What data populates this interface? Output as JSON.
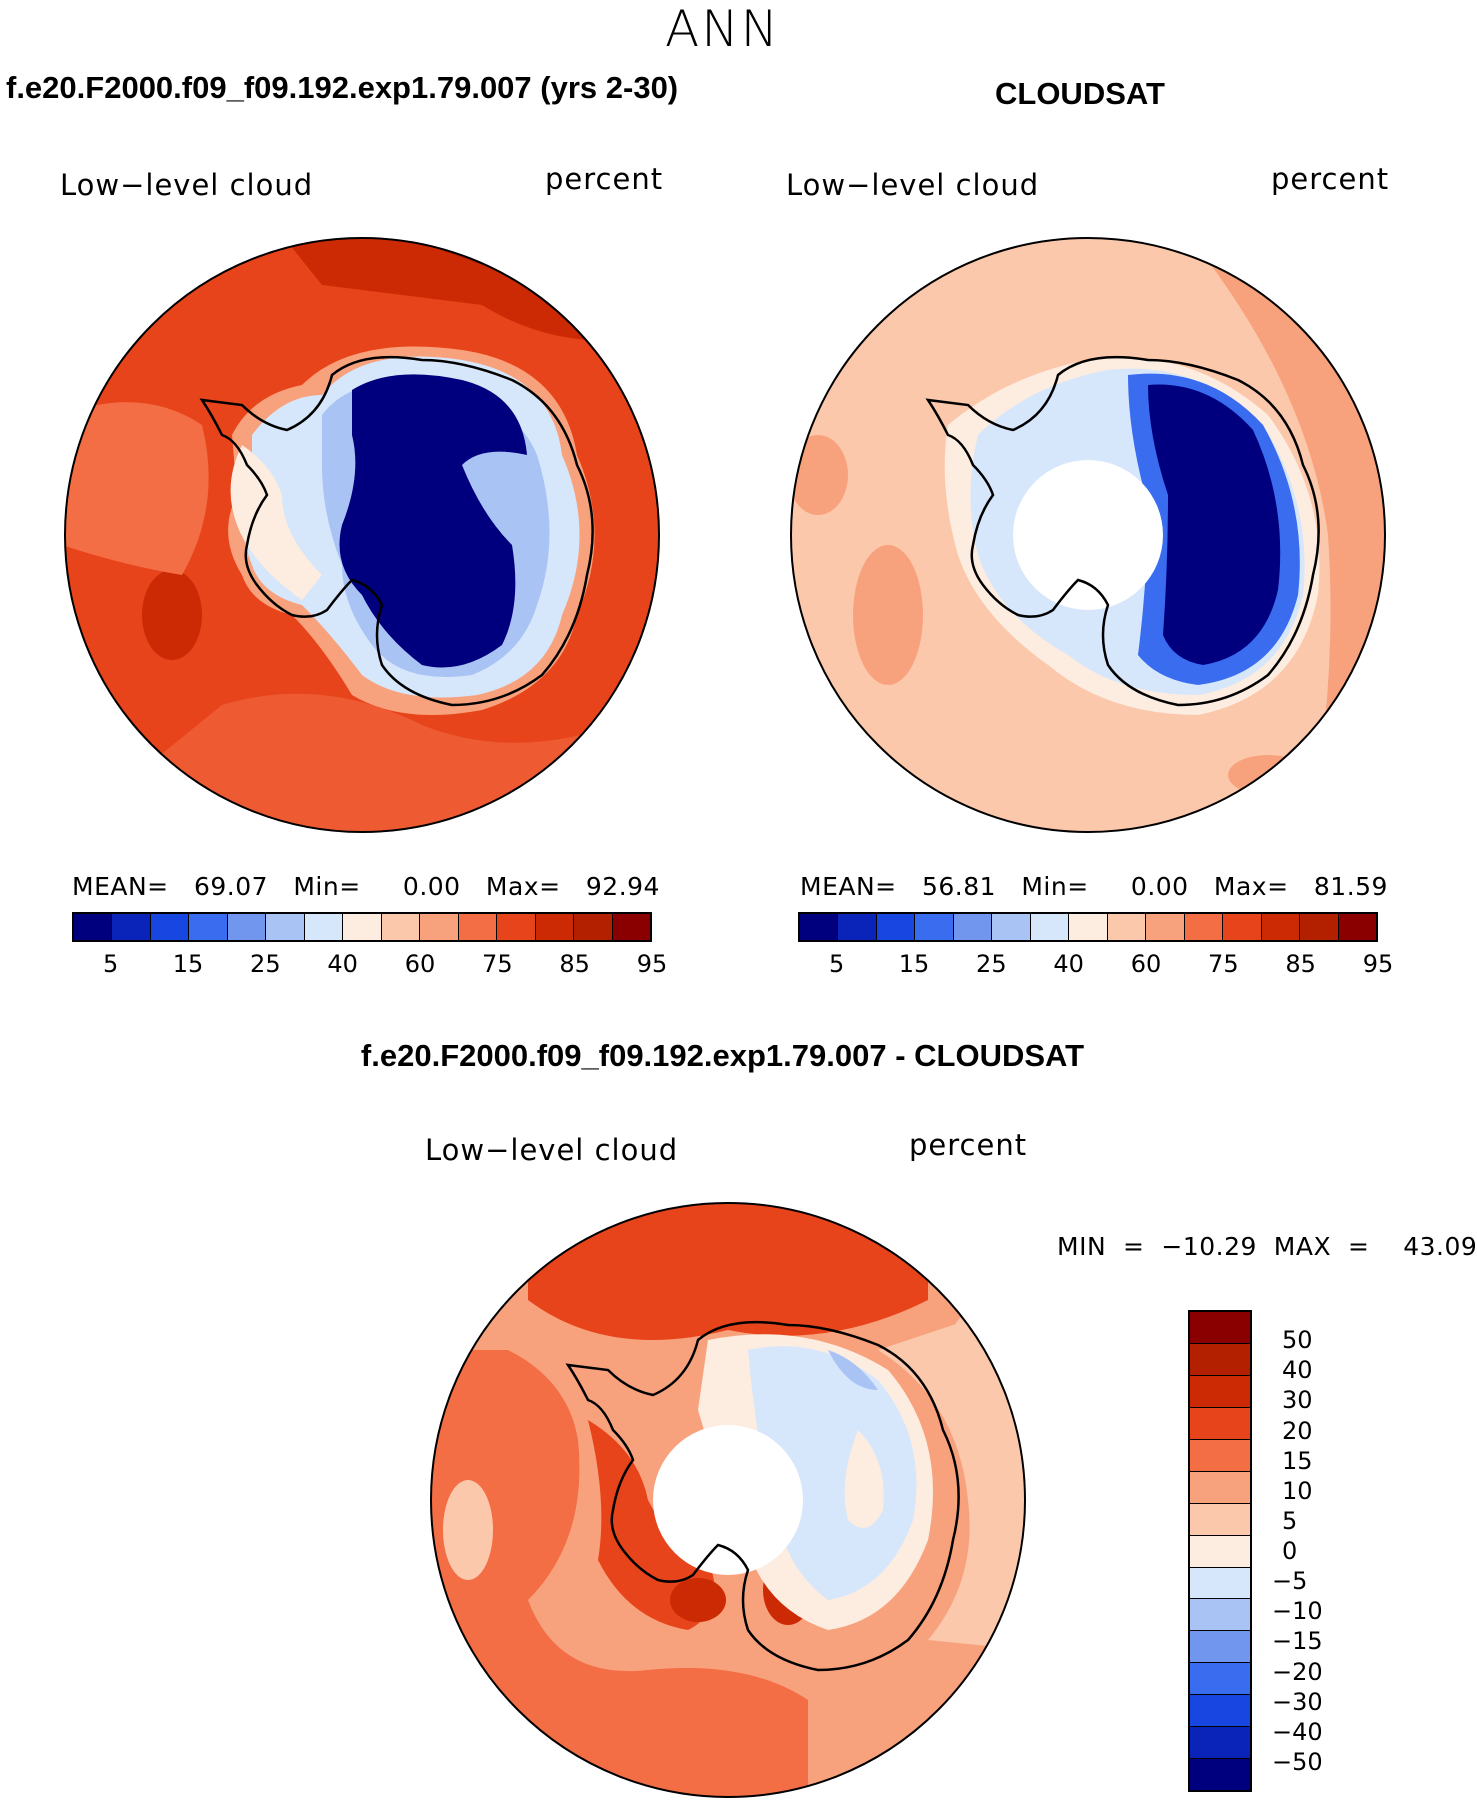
{
  "title": "ANN",
  "panels": {
    "model": {
      "title": "f.e20.F2000.f09_f09.192.exp1.79.007 (yrs 2-30)",
      "left_label": "Low−level cloud",
      "right_label": "percent",
      "stats": "MEAN=   69.07   Min=     0.00   Max=   92.94"
    },
    "obs": {
      "title": "CLOUDSAT",
      "left_label": "Low−level cloud",
      "right_label": "percent",
      "stats": "MEAN=   56.81   Min=     0.00   Max=   81.59"
    },
    "diff": {
      "title": "f.e20.F2000.f09_f09.192.exp1.79.007 - CLOUDSAT",
      "left_label": "Low−level cloud",
      "right_label": "percent",
      "stats": "MIN  =  −10.29  MAX  =    43.09"
    }
  },
  "colorbar_abs": {
    "colors": [
      "#00007f",
      "#0a23b8",
      "#1746e0",
      "#3a6cf0",
      "#7096ee",
      "#a9c3f5",
      "#d6e6fb",
      "#fdece0",
      "#fbc8ab",
      "#f8a27d",
      "#f36d45",
      "#e8441b",
      "#cc2a04",
      "#b22000",
      "#8a0000"
    ],
    "labels": [
      "5",
      "15",
      "25",
      "40",
      "60",
      "75",
      "85",
      "95"
    ]
  },
  "colorbar_diff": {
    "colors": [
      "#8a0000",
      "#b22000",
      "#cc2a04",
      "#e8441b",
      "#f36d45",
      "#f8a27d",
      "#fbc8ab",
      "#fdece0",
      "#d6e6fb",
      "#a9c3f5",
      "#7096ee",
      "#3a6cf0",
      "#1746e0",
      "#0a23b8",
      "#00007f"
    ],
    "labels": [
      "50",
      "40",
      "30",
      "20",
      "15",
      "10",
      "5",
      "0",
      "−5",
      "−10",
      "−15",
      "−20",
      "−30",
      "−40",
      "−50"
    ]
  }
}
